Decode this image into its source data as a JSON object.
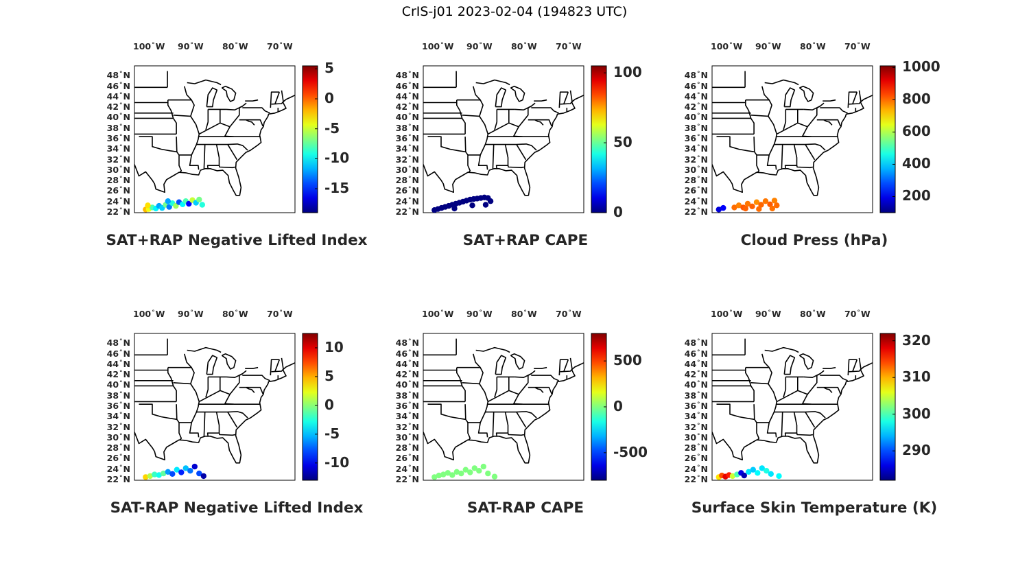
{
  "figure": {
    "title": "CrIS-j01 2023-02-04 (194823 UTC)"
  },
  "map": {
    "lon_labels": [
      {
        "value": -100,
        "deg": "100",
        "hemi": "W"
      },
      {
        "value": -90,
        "deg": "90",
        "hemi": "W"
      },
      {
        "value": -80,
        "deg": "80",
        "hemi": "W"
      },
      {
        "value": -70,
        "deg": "70",
        "hemi": "W"
      }
    ],
    "lat_labels": [
      {
        "value": 48,
        "deg": "48",
        "hemi": "N"
      },
      {
        "value": 46,
        "deg": "46",
        "hemi": "N"
      },
      {
        "value": 44,
        "deg": "44",
        "hemi": "N"
      },
      {
        "value": 42,
        "deg": "42",
        "hemi": "N"
      },
      {
        "value": 40,
        "deg": "40",
        "hemi": "N"
      },
      {
        "value": 38,
        "deg": "38",
        "hemi": "N"
      },
      {
        "value": 36,
        "deg": "36",
        "hemi": "N"
      },
      {
        "value": 34,
        "deg": "34",
        "hemi": "N"
      },
      {
        "value": 32,
        "deg": "32",
        "hemi": "N"
      },
      {
        "value": 30,
        "deg": "30",
        "hemi": "N"
      },
      {
        "value": 28,
        "deg": "28",
        "hemi": "N"
      },
      {
        "value": 26,
        "deg": "26",
        "hemi": "N"
      },
      {
        "value": 24,
        "deg": "24",
        "hemi": "N"
      },
      {
        "value": 22,
        "deg": "22",
        "hemi": "N"
      }
    ],
    "lon_range": [
      -104,
      -68
    ],
    "lat_range": [
      22,
      50
    ]
  },
  "panels": [
    {
      "title": "SAT+RAP Negative Lifted Index",
      "colorbar": {
        "range": [
          -19,
          5.5
        ],
        "ticks": [
          "5",
          "0",
          "-5",
          "-10",
          "-15"
        ],
        "tick_values": [
          5,
          0,
          -5,
          -10,
          -15
        ]
      },
      "points": [
        {
          "lon": -101.5,
          "lat": 22.6,
          "value": -2
        },
        {
          "lon": -100.8,
          "lat": 22.7,
          "value": -4
        },
        {
          "lon": -100.0,
          "lat": 23.0,
          "value": -8
        },
        {
          "lon": -99.2,
          "lat": 22.8,
          "value": -10
        },
        {
          "lon": -98.5,
          "lat": 23.3,
          "value": -12
        },
        {
          "lon": -97.8,
          "lat": 22.9,
          "value": -11
        },
        {
          "lon": -97.0,
          "lat": 23.5,
          "value": -7
        },
        {
          "lon": -96.2,
          "lat": 23.1,
          "value": -13
        },
        {
          "lon": -95.5,
          "lat": 23.8,
          "value": -9
        },
        {
          "lon": -94.7,
          "lat": 23.3,
          "value": -6
        },
        {
          "lon": -94.0,
          "lat": 24.0,
          "value": -14
        },
        {
          "lon": -93.2,
          "lat": 23.6,
          "value": -10
        },
        {
          "lon": -92.5,
          "lat": 24.2,
          "value": -8
        },
        {
          "lon": -91.8,
          "lat": 23.7,
          "value": -16
        },
        {
          "lon": -91.0,
          "lat": 24.4,
          "value": -5
        },
        {
          "lon": -90.2,
          "lat": 23.9,
          "value": -11
        },
        {
          "lon": -89.5,
          "lat": 24.5,
          "value": -7
        },
        {
          "lon": -88.8,
          "lat": 23.5,
          "value": -9
        },
        {
          "lon": -101.0,
          "lat": 23.4,
          "value": -3
        },
        {
          "lon": -96.5,
          "lat": 24.2,
          "value": -12
        }
      ]
    },
    {
      "title": "SAT+RAP CAPE",
      "colorbar": {
        "range": [
          0,
          105
        ],
        "ticks": [
          "100",
          "50",
          "0"
        ],
        "tick_values": [
          100,
          50,
          0
        ]
      },
      "points": [
        {
          "lon": -101.5,
          "lat": 22.5,
          "value": 0
        },
        {
          "lon": -100.7,
          "lat": 22.7,
          "value": 0
        },
        {
          "lon": -99.9,
          "lat": 22.9,
          "value": 0
        },
        {
          "lon": -99.1,
          "lat": 23.1,
          "value": 0
        },
        {
          "lon": -98.3,
          "lat": 23.3,
          "value": 0
        },
        {
          "lon": -97.5,
          "lat": 23.5,
          "value": 0
        },
        {
          "lon": -96.7,
          "lat": 23.7,
          "value": 0
        },
        {
          "lon": -95.9,
          "lat": 23.9,
          "value": 0
        },
        {
          "lon": -95.1,
          "lat": 24.1,
          "value": 0
        },
        {
          "lon": -94.3,
          "lat": 24.3,
          "value": 0
        },
        {
          "lon": -93.5,
          "lat": 24.5,
          "value": 0
        },
        {
          "lon": -92.7,
          "lat": 24.6,
          "value": 0
        },
        {
          "lon": -91.9,
          "lat": 24.7,
          "value": 0
        },
        {
          "lon": -91.1,
          "lat": 24.8,
          "value": 0
        },
        {
          "lon": -90.3,
          "lat": 24.9,
          "value": 0
        },
        {
          "lon": -89.5,
          "lat": 24.8,
          "value": 0
        },
        {
          "lon": -88.9,
          "lat": 24.2,
          "value": 0
        },
        {
          "lon": -97.0,
          "lat": 22.8,
          "value": 0
        },
        {
          "lon": -93.0,
          "lat": 23.4,
          "value": 0
        },
        {
          "lon": -90.0,
          "lat": 23.5,
          "value": 0
        }
      ]
    },
    {
      "title": "Cloud Press (hPa)",
      "colorbar": {
        "range": [
          100,
          1010
        ],
        "ticks": [
          "1000",
          "800",
          "600",
          "400",
          "200"
        ],
        "tick_values": [
          1000,
          800,
          600,
          400,
          200
        ]
      },
      "points": [
        {
          "lon": -102.5,
          "lat": 22.6,
          "value": 180
        },
        {
          "lon": -101.5,
          "lat": 22.9,
          "value": 210
        },
        {
          "lon": -99.0,
          "lat": 23.0,
          "value": 800
        },
        {
          "lon": -98.0,
          "lat": 23.4,
          "value": 780
        },
        {
          "lon": -97.0,
          "lat": 23.0,
          "value": 820
        },
        {
          "lon": -96.0,
          "lat": 23.7,
          "value": 790
        },
        {
          "lon": -95.0,
          "lat": 23.2,
          "value": 810
        },
        {
          "lon": -94.0,
          "lat": 24.0,
          "value": 770
        },
        {
          "lon": -93.0,
          "lat": 23.5,
          "value": 805
        },
        {
          "lon": -92.0,
          "lat": 24.2,
          "value": 790
        },
        {
          "lon": -91.0,
          "lat": 23.6,
          "value": 815
        },
        {
          "lon": -90.0,
          "lat": 24.3,
          "value": 780
        },
        {
          "lon": -89.5,
          "lat": 23.4,
          "value": 800
        },
        {
          "lon": -90.5,
          "lat": 22.8,
          "value": 795
        },
        {
          "lon": -96.5,
          "lat": 22.8,
          "value": 810
        },
        {
          "lon": -93.5,
          "lat": 22.7,
          "value": 800
        }
      ]
    },
    {
      "title": "SAT-RAP Negative Lifted Index",
      "colorbar": {
        "range": [
          -13,
          12.5
        ],
        "ticks": [
          "10",
          "5",
          "0",
          "-5",
          "-10"
        ],
        "tick_values": [
          10,
          5,
          0,
          -5,
          -10
        ]
      },
      "points": [
        {
          "lon": -101.5,
          "lat": 22.6,
          "value": 4
        },
        {
          "lon": -100.5,
          "lat": 22.8,
          "value": 1
        },
        {
          "lon": -99.5,
          "lat": 23.1,
          "value": -2
        },
        {
          "lon": -98.5,
          "lat": 23.0,
          "value": -3
        },
        {
          "lon": -97.5,
          "lat": 23.3,
          "value": -1
        },
        {
          "lon": -96.5,
          "lat": 23.6,
          "value": -6
        },
        {
          "lon": -95.5,
          "lat": 23.2,
          "value": -8
        },
        {
          "lon": -94.5,
          "lat": 24.0,
          "value": -4
        },
        {
          "lon": -93.5,
          "lat": 23.5,
          "value": -9
        },
        {
          "lon": -92.5,
          "lat": 24.3,
          "value": -5
        },
        {
          "lon": -91.5,
          "lat": 23.8,
          "value": -7
        },
        {
          "lon": -90.5,
          "lat": 24.6,
          "value": -11
        },
        {
          "lon": -89.5,
          "lat": 23.3,
          "value": -8
        },
        {
          "lon": -88.5,
          "lat": 22.8,
          "value": -12
        }
      ]
    },
    {
      "title": "SAT-RAP CAPE",
      "colorbar": {
        "range": [
          -800,
          800
        ],
        "ticks": [
          "500",
          "0",
          "-500"
        ],
        "tick_values": [
          500,
          0,
          -500
        ]
      },
      "points": [
        {
          "lon": -101.5,
          "lat": 22.6,
          "value": 0
        },
        {
          "lon": -100.5,
          "lat": 22.9,
          "value": 0
        },
        {
          "lon": -99.5,
          "lat": 23.1,
          "value": 0
        },
        {
          "lon": -98.5,
          "lat": 23.4,
          "value": 0
        },
        {
          "lon": -97.5,
          "lat": 23.0,
          "value": 0
        },
        {
          "lon": -96.5,
          "lat": 23.6,
          "value": 0
        },
        {
          "lon": -95.5,
          "lat": 23.3,
          "value": 0
        },
        {
          "lon": -94.5,
          "lat": 24.0,
          "value": 0
        },
        {
          "lon": -93.5,
          "lat": 23.5,
          "value": 0
        },
        {
          "lon": -92.5,
          "lat": 24.3,
          "value": 0
        },
        {
          "lon": -91.5,
          "lat": 23.8,
          "value": 0
        },
        {
          "lon": -90.5,
          "lat": 24.6,
          "value": 0
        },
        {
          "lon": -89.5,
          "lat": 23.3,
          "value": 0
        },
        {
          "lon": -88.0,
          "lat": 22.7,
          "value": 0
        }
      ]
    },
    {
      "title": "Surface Skin Temperature (K)",
      "colorbar": {
        "range": [
          282,
          322
        ],
        "ticks": [
          "320",
          "310",
          "300",
          "290"
        ],
        "tick_values": [
          320,
          310,
          300,
          290
        ]
      },
      "points": [
        {
          "lon": -102.5,
          "lat": 22.6,
          "value": 308
        },
        {
          "lon": -101.8,
          "lat": 22.9,
          "value": 314
        },
        {
          "lon": -101.0,
          "lat": 22.7,
          "value": 318
        },
        {
          "lon": -100.2,
          "lat": 23.0,
          "value": 316
        },
        {
          "lon": -99.4,
          "lat": 22.8,
          "value": 305
        },
        {
          "lon": -98.4,
          "lat": 23.1,
          "value": 300
        },
        {
          "lon": -97.5,
          "lat": 23.4,
          "value": 286
        },
        {
          "lon": -96.8,
          "lat": 22.9,
          "value": 284
        },
        {
          "lon": -95.8,
          "lat": 23.6,
          "value": 296
        },
        {
          "lon": -94.8,
          "lat": 24.0,
          "value": 295
        },
        {
          "lon": -93.8,
          "lat": 23.4,
          "value": 297
        },
        {
          "lon": -92.8,
          "lat": 24.3,
          "value": 296
        },
        {
          "lon": -91.8,
          "lat": 23.8,
          "value": 298
        },
        {
          "lon": -90.8,
          "lat": 23.2,
          "value": 296
        },
        {
          "lon": -89.0,
          "lat": 22.8,
          "value": 297
        }
      ]
    }
  ]
}
